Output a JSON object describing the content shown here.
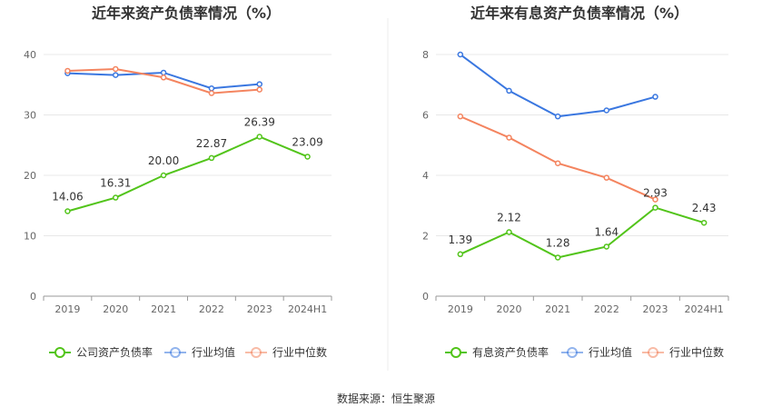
{
  "source": "数据来源：恒生聚源",
  "chart_data": [
    {
      "type": "line",
      "title": "近年来资产负债率情况（%）",
      "categories": [
        "2019",
        "2020",
        "2021",
        "2022",
        "2023",
        "2024H1"
      ],
      "ylim": [
        0,
        40
      ],
      "yticks": [
        "0",
        "10",
        "20",
        "30",
        "40"
      ],
      "grid": true,
      "legend_position": "bottom",
      "series": [
        {
          "name": "公司资产负债率",
          "color": "#52c41a",
          "values": [
            14.06,
            16.31,
            20.0,
            22.87,
            26.39,
            23.09
          ],
          "labels": [
            "14.06",
            "16.31",
            "20.00",
            "22.87",
            "26.39",
            "23.09"
          ]
        },
        {
          "name": "行业均值",
          "color": "#3a77e0",
          "values": [
            36.9,
            36.6,
            37.0,
            34.4,
            35.1,
            null
          ]
        },
        {
          "name": "行业中位数",
          "color": "#f4845f",
          "values": [
            37.3,
            37.6,
            36.2,
            33.6,
            34.2,
            null
          ]
        }
      ]
    },
    {
      "type": "line",
      "title": "近年来有息资产负债率情况（%）",
      "categories": [
        "2019",
        "2020",
        "2021",
        "2022",
        "2023",
        "2024H1"
      ],
      "ylim": [
        0,
        8
      ],
      "yticks": [
        "0",
        "2",
        "4",
        "6",
        "8"
      ],
      "grid": true,
      "legend_position": "bottom",
      "series": [
        {
          "name": "有息资产负债率",
          "color": "#52c41a",
          "values": [
            1.39,
            2.12,
            1.28,
            1.64,
            2.93,
            2.43
          ],
          "labels": [
            "1.39",
            "2.12",
            "1.28",
            "1.64",
            "2.93",
            "2.43"
          ]
        },
        {
          "name": "行业均值",
          "color": "#3a77e0",
          "values": [
            8.0,
            6.8,
            5.95,
            6.15,
            6.6,
            null
          ]
        },
        {
          "name": "行业中位数",
          "color": "#f4845f",
          "values": [
            5.95,
            5.25,
            4.4,
            3.92,
            3.2,
            null
          ]
        }
      ]
    }
  ]
}
